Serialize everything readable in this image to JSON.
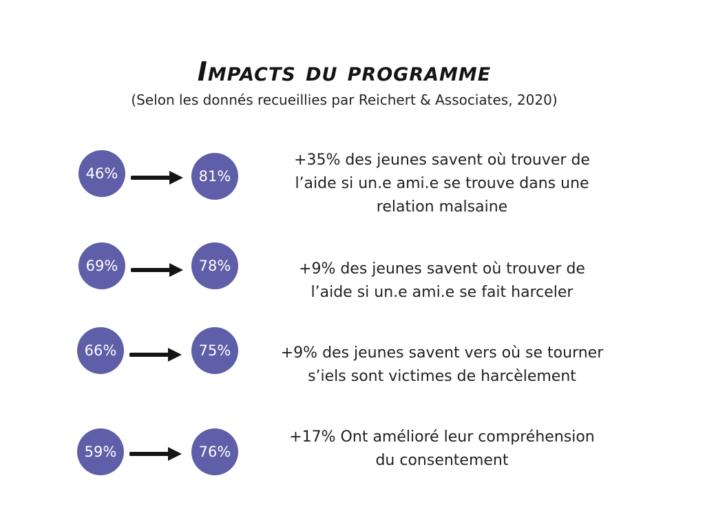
{
  "title": "Impacts du programme",
  "subtitle": "(Selon les donnés recueillies par Reichert & Associates, 2020)",
  "colors": {
    "circle": "#5e5ea9",
    "arrow": "#141414",
    "text": "#1f1f1f"
  },
  "rows": [
    {
      "before": "46%",
      "after": "81%",
      "description_lines": [
        "+35% des jeunes savent où trouver de",
        "l’aide si un.e ami.e se trouve dans une",
        "relation malsaine"
      ]
    },
    {
      "before": "69%",
      "after": "78%",
      "description_lines": [
        "+9% des jeunes savent où trouver de",
        "l’aide si un.e ami.e se fait harceler"
      ]
    },
    {
      "before": "66%",
      "after": "75%",
      "description_lines": [
        "+9% des jeunes savent vers où se tourner",
        "s’iels sont victimes de harcèlement"
      ]
    },
    {
      "before": "59%",
      "after": "76%",
      "description_lines": [
        "+17% Ont amélioré leur compréhension",
        "du consentement"
      ]
    }
  ]
}
